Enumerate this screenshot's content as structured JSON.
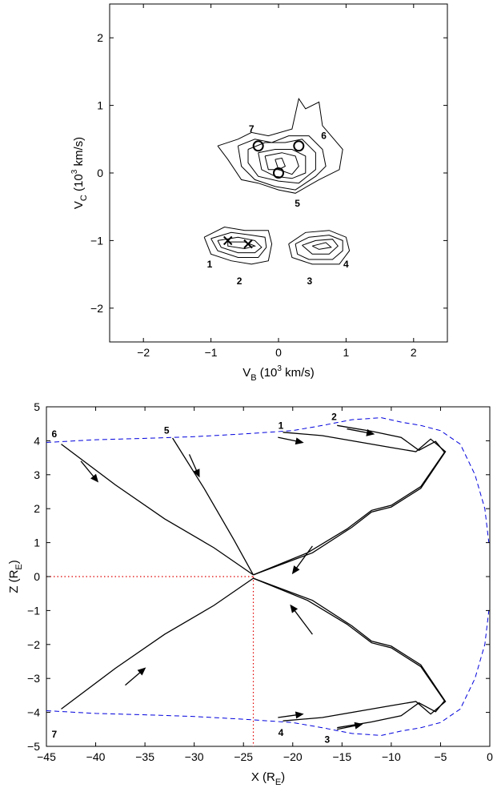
{
  "chart_data": [
    {
      "type": "contour",
      "title": "",
      "xlabel": {
        "main": "V",
        "sub": "B",
        "tail": " (10",
        "sup": "3",
        "end": " km/s)"
      },
      "ylabel": {
        "main": "V",
        "sub": "C",
        "tail": " (10",
        "sup": "3",
        "end": " km/s)"
      },
      "xlim": [
        -2.5,
        2.5
      ],
      "ylim": [
        -2.5,
        2.5
      ],
      "xticks": [
        -2,
        -1,
        0,
        1,
        2
      ],
      "yticks": [
        -2,
        -1,
        0,
        1,
        2
      ],
      "grid": false,
      "contours": [
        [
          [
            -0.9,
            0.4
          ],
          [
            -0.6,
            0.5
          ],
          [
            -0.4,
            0.6
          ],
          [
            -0.15,
            0.55
          ],
          [
            0.2,
            0.65
          ],
          [
            0.3,
            1.1
          ],
          [
            0.4,
            0.95
          ],
          [
            0.6,
            1.05
          ],
          [
            0.65,
            0.7
          ],
          [
            0.95,
            0.35
          ],
          [
            0.9,
            0.05
          ],
          [
            0.6,
            -0.1
          ],
          [
            0.25,
            -0.3
          ],
          [
            0,
            -0.25
          ],
          [
            -0.3,
            -0.15
          ],
          [
            -0.55,
            -0.1
          ],
          [
            -0.75,
            0.2
          ],
          [
            -0.9,
            0.4
          ]
        ],
        [
          [
            -0.6,
            0.4
          ],
          [
            -0.35,
            0.5
          ],
          [
            -0.1,
            0.45
          ],
          [
            0.15,
            0.55
          ],
          [
            0.45,
            0.55
          ],
          [
            0.65,
            0.35
          ],
          [
            0.7,
            0.1
          ],
          [
            0.55,
            -0.05
          ],
          [
            0.25,
            -0.25
          ],
          [
            -0.05,
            -0.2
          ],
          [
            -0.35,
            -0.1
          ],
          [
            -0.55,
            0.1
          ],
          [
            -0.6,
            0.4
          ]
        ],
        [
          [
            -0.45,
            0.35
          ],
          [
            -0.2,
            0.45
          ],
          [
            0.1,
            0.45
          ],
          [
            0.35,
            0.5
          ],
          [
            0.55,
            0.3
          ],
          [
            0.55,
            0.05
          ],
          [
            0.3,
            -0.15
          ],
          [
            0,
            -0.12
          ],
          [
            -0.3,
            -0.05
          ],
          [
            -0.45,
            0.15
          ],
          [
            -0.45,
            0.35
          ]
        ],
        [
          [
            -0.3,
            0.3
          ],
          [
            -0.05,
            0.35
          ],
          [
            0.2,
            0.35
          ],
          [
            0.4,
            0.25
          ],
          [
            0.4,
            0.0
          ],
          [
            0.2,
            -0.08
          ],
          [
            -0.05,
            -0.05
          ],
          [
            -0.25,
            0.05
          ],
          [
            -0.3,
            0.3
          ]
        ],
        [
          [
            -0.2,
            0.25
          ],
          [
            0.05,
            0.3
          ],
          [
            0.25,
            0.25
          ],
          [
            0.3,
            0.1
          ],
          [
            0.2,
            -0.02
          ],
          [
            0.0,
            0.05
          ],
          [
            -0.15,
            0.05
          ],
          [
            -0.2,
            0.25
          ]
        ],
        [
          [
            -0.05,
            0.2
          ],
          [
            0.05,
            0.22
          ],
          [
            0.1,
            0.1
          ],
          [
            0.0,
            0.05
          ],
          [
            -0.05,
            0.2
          ]
        ],
        [
          [
            -1.1,
            -0.95
          ],
          [
            -0.8,
            -0.8
          ],
          [
            -0.5,
            -0.85
          ],
          [
            -0.15,
            -0.85
          ],
          [
            -0.1,
            -1.05
          ],
          [
            -0.15,
            -1.3
          ],
          [
            -0.4,
            -1.35
          ],
          [
            -0.7,
            -1.3
          ],
          [
            -1.0,
            -1.2
          ],
          [
            -1.1,
            -0.95
          ]
        ],
        [
          [
            -1.0,
            -0.97
          ],
          [
            -0.7,
            -0.88
          ],
          [
            -0.4,
            -0.92
          ],
          [
            -0.2,
            -0.95
          ],
          [
            -0.18,
            -1.1
          ],
          [
            -0.3,
            -1.25
          ],
          [
            -0.6,
            -1.25
          ],
          [
            -0.9,
            -1.15
          ],
          [
            -1.0,
            -0.97
          ]
        ],
        [
          [
            -0.9,
            -1.0
          ],
          [
            -0.6,
            -0.95
          ],
          [
            -0.35,
            -1.0
          ],
          [
            -0.25,
            -1.1
          ],
          [
            -0.35,
            -1.18
          ],
          [
            -0.6,
            -1.18
          ],
          [
            -0.85,
            -1.1
          ],
          [
            -0.9,
            -1.0
          ]
        ],
        [
          [
            -0.75,
            -1.02
          ],
          [
            -0.5,
            -1.02
          ],
          [
            -0.35,
            -1.08
          ],
          [
            -0.5,
            -1.12
          ],
          [
            -0.75,
            -1.08
          ],
          [
            -0.75,
            -1.02
          ]
        ],
        [
          [
            0.15,
            -1.05
          ],
          [
            0.4,
            -0.88
          ],
          [
            0.75,
            -0.85
          ],
          [
            1.0,
            -0.95
          ],
          [
            1.05,
            -1.15
          ],
          [
            0.9,
            -1.35
          ],
          [
            0.5,
            -1.35
          ],
          [
            0.2,
            -1.25
          ],
          [
            0.15,
            -1.05
          ]
        ],
        [
          [
            0.25,
            -1.05
          ],
          [
            0.45,
            -0.95
          ],
          [
            0.75,
            -0.92
          ],
          [
            0.95,
            -1.0
          ],
          [
            0.95,
            -1.15
          ],
          [
            0.8,
            -1.28
          ],
          [
            0.45,
            -1.28
          ],
          [
            0.28,
            -1.2
          ],
          [
            0.25,
            -1.05
          ]
        ],
        [
          [
            0.35,
            -1.07
          ],
          [
            0.55,
            -1.0
          ],
          [
            0.8,
            -0.98
          ],
          [
            0.88,
            -1.08
          ],
          [
            0.75,
            -1.2
          ],
          [
            0.5,
            -1.2
          ],
          [
            0.35,
            -1.07
          ]
        ],
        [
          [
            0.5,
            -1.08
          ],
          [
            0.7,
            -1.03
          ],
          [
            0.78,
            -1.1
          ],
          [
            0.6,
            -1.13
          ],
          [
            0.5,
            -1.08
          ]
        ]
      ],
      "circles": [
        [
          -0.3,
          0.4
        ],
        [
          0.3,
          0.4
        ],
        [
          0,
          0
        ]
      ],
      "crosses": [
        [
          -0.75,
          -1.0
        ],
        [
          -0.45,
          -1.05
        ]
      ],
      "annotations": [
        {
          "text": "7",
          "x": -0.4,
          "y": 0.65
        },
        {
          "text": "6",
          "x": 0.67,
          "y": 0.55
        },
        {
          "text": "5",
          "x": 0.28,
          "y": -0.45
        },
        {
          "text": "1",
          "x": -1.02,
          "y": -1.35
        },
        {
          "text": "2",
          "x": -0.58,
          "y": -1.6
        },
        {
          "text": "3",
          "x": 0.46,
          "y": -1.6
        },
        {
          "text": "4",
          "x": 1.0,
          "y": -1.35
        }
      ]
    },
    {
      "type": "line",
      "title": "",
      "xlabel": {
        "main": "X (R",
        "sub": "E",
        "end": ")"
      },
      "ylabel": {
        "main": "Z (R",
        "sub": "E",
        "end": ")"
      },
      "xlim": [
        -45,
        0
      ],
      "ylim": [
        -5,
        5
      ],
      "xticks": [
        -45,
        -40,
        -35,
        -30,
        -25,
        -20,
        -15,
        -10,
        -5,
        0
      ],
      "yticks": [
        -5,
        -4,
        -3,
        -2,
        -1,
        0,
        1,
        2,
        3,
        4,
        5
      ],
      "grid": false,
      "boundary_upper": [
        [
          -45,
          3.95
        ],
        [
          -40,
          4.03
        ],
        [
          -35,
          4.07
        ],
        [
          -30,
          4.12
        ],
        [
          -25,
          4.2
        ],
        [
          -20,
          4.3
        ],
        [
          -17,
          4.45
        ],
        [
          -14,
          4.62
        ],
        [
          -11,
          4.68
        ],
        [
          -9,
          4.55
        ],
        [
          -7,
          4.45
        ],
        [
          -5,
          4.3
        ],
        [
          -3,
          3.9
        ],
        [
          -1.5,
          3.0
        ],
        [
          -0.5,
          2.0
        ],
        [
          -0.1,
          1.0
        ]
      ],
      "boundary_lower": [
        [
          -45,
          -3.95
        ],
        [
          -40,
          -4.03
        ],
        [
          -35,
          -4.07
        ],
        [
          -30,
          -4.12
        ],
        [
          -25,
          -4.2
        ],
        [
          -20,
          -4.3
        ],
        [
          -17,
          -4.45
        ],
        [
          -14,
          -4.62
        ],
        [
          -11,
          -4.68
        ],
        [
          -9,
          -4.55
        ],
        [
          -7,
          -4.45
        ],
        [
          -5,
          -4.3
        ],
        [
          -3,
          -3.9
        ],
        [
          -1.5,
          -3.0
        ],
        [
          -0.5,
          -2.0
        ],
        [
          -0.1,
          -1.0
        ]
      ],
      "ref_x": -24,
      "ref_y": 0,
      "trajectories": [
        {
          "label": "6",
          "points": [
            [
              -43.5,
              3.9
            ],
            [
              -38,
              2.7
            ],
            [
              -33,
              1.7
            ],
            [
              -28,
              0.85
            ],
            [
              -24,
              0.05
            ]
          ]
        },
        {
          "label": "5",
          "points": [
            [
              -32.2,
              4.08
            ],
            [
              -29,
              2.6
            ],
            [
              -26,
              1.1
            ],
            [
              -24,
              0.05
            ]
          ]
        },
        {
          "label": "7",
          "points": [
            [
              -43.5,
              -3.9
            ],
            [
              -38,
              -2.7
            ],
            [
              -33,
              -1.7
            ],
            [
              -28,
              -0.85
            ],
            [
              -24,
              -0.05
            ]
          ]
        },
        {
          "label": "1",
          "points": [
            [
              -21,
              4.25
            ],
            [
              -17,
              4.15
            ],
            [
              -13,
              3.95
            ],
            [
              -10,
              3.8
            ],
            [
              -7.5,
              3.68
            ],
            [
              -6,
              4.05
            ],
            [
              -4.5,
              3.68
            ],
            [
              -7,
              2.6
            ],
            [
              -10,
              2.05
            ],
            [
              -12,
              1.9
            ],
            [
              -14,
              1.45
            ],
            [
              -18,
              0.7
            ],
            [
              -24,
              0.05
            ]
          ]
        },
        {
          "label": "2",
          "points": [
            [
              -15.5,
              4.45
            ],
            [
              -12,
              4.28
            ],
            [
              -9,
              4.1
            ],
            [
              -7.2,
              3.72
            ],
            [
              -5.5,
              3.98
            ],
            [
              -4.6,
              3.66
            ],
            [
              -7,
              2.65
            ],
            [
              -10,
              2.1
            ],
            [
              -12,
              1.95
            ],
            [
              -14.5,
              1.4
            ],
            [
              -18.5,
              0.7
            ],
            [
              -24,
              0.05
            ]
          ]
        },
        {
          "label": "3",
          "points": [
            [
              -15.5,
              -4.45
            ],
            [
              -12,
              -4.28
            ],
            [
              -9,
              -4.1
            ],
            [
              -7.2,
              -3.72
            ],
            [
              -5.5,
              -3.98
            ],
            [
              -4.6,
              -3.66
            ],
            [
              -7,
              -2.65
            ],
            [
              -10,
              -2.1
            ],
            [
              -12,
              -1.95
            ],
            [
              -14.5,
              -1.4
            ],
            [
              -18.5,
              -0.7
            ],
            [
              -24,
              -0.05
            ]
          ]
        },
        {
          "label": "4",
          "points": [
            [
              -21,
              -4.25
            ],
            [
              -17,
              -4.15
            ],
            [
              -13,
              -3.95
            ],
            [
              -10,
              -3.8
            ],
            [
              -7.5,
              -3.68
            ],
            [
              -6,
              -4.05
            ],
            [
              -4.5,
              -3.68
            ],
            [
              -7,
              -2.6
            ],
            [
              -10,
              -2.05
            ],
            [
              -12,
              -1.9
            ],
            [
              -14,
              -1.45
            ],
            [
              -18,
              -0.7
            ],
            [
              -24,
              -0.05
            ]
          ]
        }
      ],
      "arrows": [
        {
          "from": [
            -41.5,
            3.4
          ],
          "to": [
            -39.8,
            2.8
          ]
        },
        {
          "from": [
            -30.5,
            3.6
          ],
          "to": [
            -29.5,
            2.95
          ]
        },
        {
          "from": [
            -21.5,
            4.1
          ],
          "to": [
            -19,
            3.95
          ]
        },
        {
          "from": [
            -14.5,
            4.35
          ],
          "to": [
            -11.8,
            4.2
          ]
        },
        {
          "from": [
            -18,
            0.9
          ],
          "to": [
            -20,
            0.1
          ]
        },
        {
          "from": [
            -18,
            -1.7
          ],
          "to": [
            -20.2,
            -0.85
          ]
        },
        {
          "from": [
            -37,
            -3.2
          ],
          "to": [
            -35,
            -2.7
          ]
        },
        {
          "from": [
            -21.5,
            -4.15
          ],
          "to": [
            -19,
            -4.05
          ]
        },
        {
          "from": [
            -15.5,
            -4.5
          ],
          "to": [
            -13,
            -4.35
          ]
        }
      ],
      "annotations": [
        {
          "text": "6",
          "x": -44.2,
          "y": 4.2
        },
        {
          "text": "5",
          "x": -32.8,
          "y": 4.3
        },
        {
          "text": "1",
          "x": -21.2,
          "y": 4.45
        },
        {
          "text": "2",
          "x": -15.8,
          "y": 4.7
        },
        {
          "text": "7",
          "x": -44.2,
          "y": -4.65
        },
        {
          "text": "4",
          "x": -21.2,
          "y": -4.6
        },
        {
          "text": "3",
          "x": -16.5,
          "y": -4.8
        }
      ]
    }
  ]
}
